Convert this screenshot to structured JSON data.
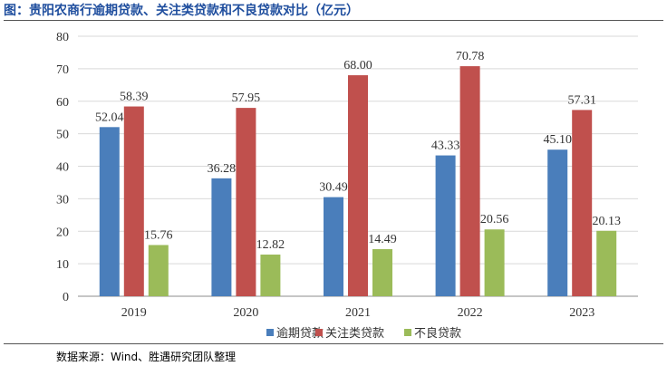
{
  "title": "图：贵阳农商行逾期贷款、关注类贷款和不良贷款对比（亿元）",
  "source": "数据来源：Wind、胜遇研究团队整理",
  "chart_data": {
    "type": "bar",
    "categories": [
      "2019",
      "2020",
      "2021",
      "2022",
      "2023"
    ],
    "series": [
      {
        "name": "逾期贷款",
        "color": "#4a7ebb",
        "values": [
          52.04,
          36.28,
          30.49,
          43.33,
          45.1
        ]
      },
      {
        "name": "关注类贷款",
        "color": "#c0504d",
        "values": [
          58.39,
          57.95,
          68.0,
          70.78,
          57.31
        ]
      },
      {
        "name": "不良贷款",
        "color": "#9bbb59",
        "values": [
          15.76,
          12.82,
          14.49,
          20.56,
          20.13
        ]
      }
    ],
    "data_labels": [
      [
        "52.04",
        "36.28",
        "30.49",
        "43.33",
        "45.10"
      ],
      [
        "58.39",
        "57.95",
        "68.00",
        "70.78",
        "57.31"
      ],
      [
        "15.76",
        "12.82",
        "14.49",
        "20.56",
        "20.13"
      ]
    ],
    "ylim": [
      0,
      80
    ],
    "yticks": [
      "0",
      "10",
      "20",
      "30",
      "40",
      "50",
      "60",
      "70",
      "80"
    ],
    "grid": true,
    "legend_position": "bottom"
  }
}
